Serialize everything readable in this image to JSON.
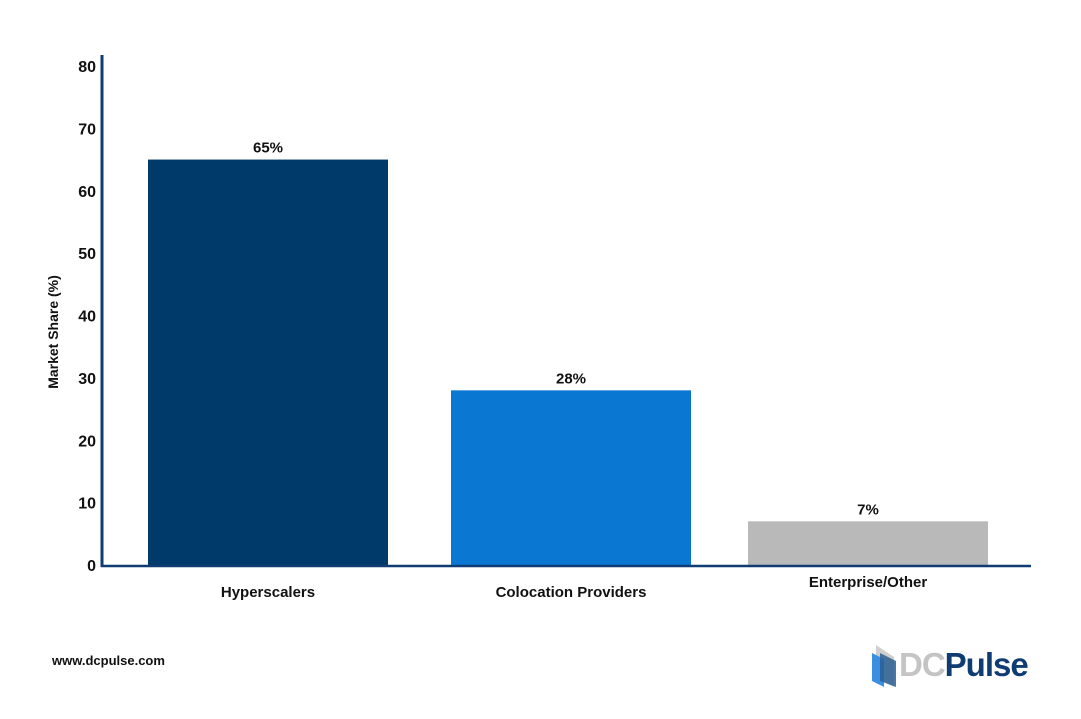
{
  "chart_data": {
    "type": "bar",
    "categories": [
      "Hyperscalers",
      "Colocation Providers",
      "Enterprise/Other"
    ],
    "values": [
      65,
      28,
      7
    ],
    "data_labels": [
      "65%",
      "28%",
      "7%"
    ],
    "colors": [
      "#003a6b",
      "#0a77d3",
      "#b9b9b9"
    ],
    "title": "",
    "xlabel": "",
    "ylabel": "Market Share (%)",
    "ylim": [
      0,
      80
    ],
    "yticks": [
      0,
      10,
      20,
      30,
      40,
      50,
      60,
      70,
      80
    ],
    "grid": false,
    "axis_color": "#0f3d73"
  },
  "footer": {
    "url": "www.dcpulse.com",
    "logo_text_dc": "DC",
    "logo_text_pulse": "Pulse"
  }
}
